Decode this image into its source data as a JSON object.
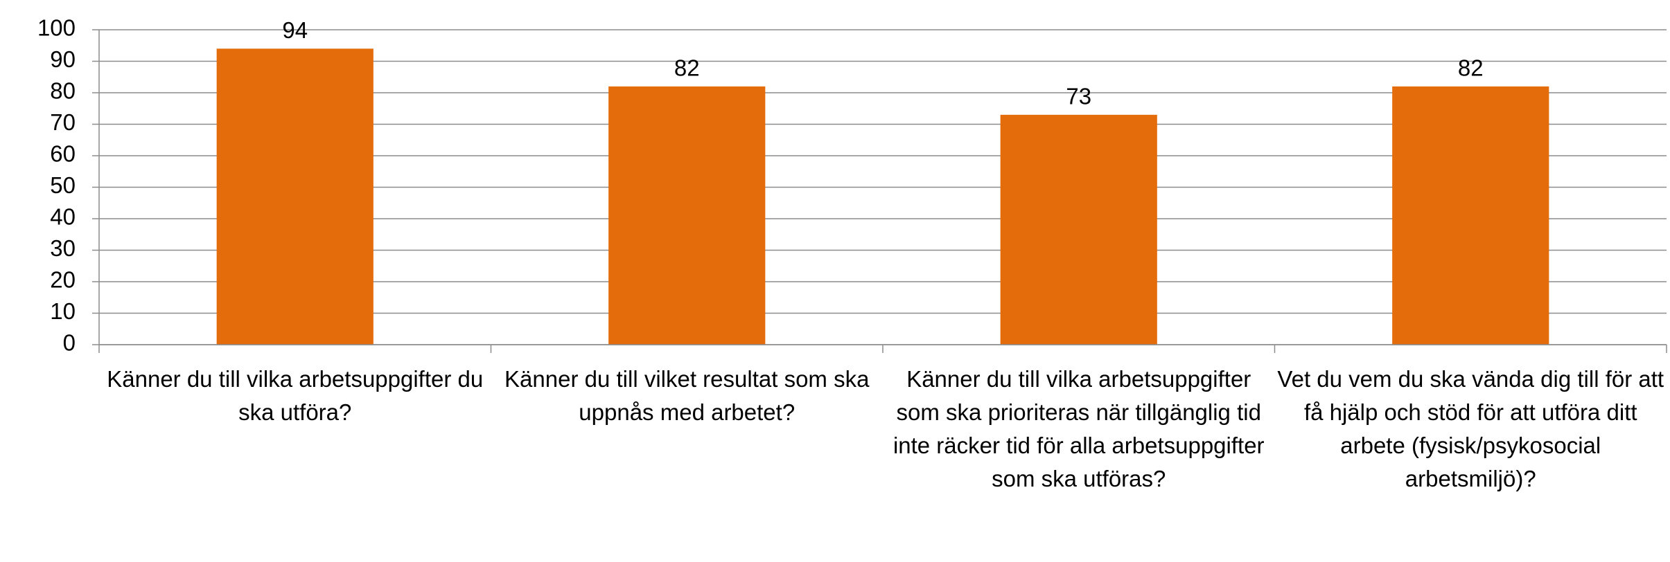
{
  "chart_data": {
    "type": "bar",
    "categories": [
      "Känner du till vilka arbetsuppgifter du ska utföra?",
      "Känner du till vilket resultat som ska uppnås med arbetet?",
      "Känner du till vilka arbetsuppgifter som ska prioriteras när tillgänglig tid inte räcker tid för alla arbetsuppgifter som ska utföras?",
      "Vet du vem du ska vända dig till för att få hjälp och stöd för att utföra ditt arbete (fysisk/psykosocial arbetsmiljö)?"
    ],
    "values": [
      94,
      82,
      73,
      82
    ],
    "color": "#e46c0a",
    "ylim": [
      0,
      100
    ],
    "yticks": [
      0,
      10,
      20,
      30,
      40,
      50,
      60,
      70,
      80,
      90,
      100
    ],
    "grid": true
  }
}
